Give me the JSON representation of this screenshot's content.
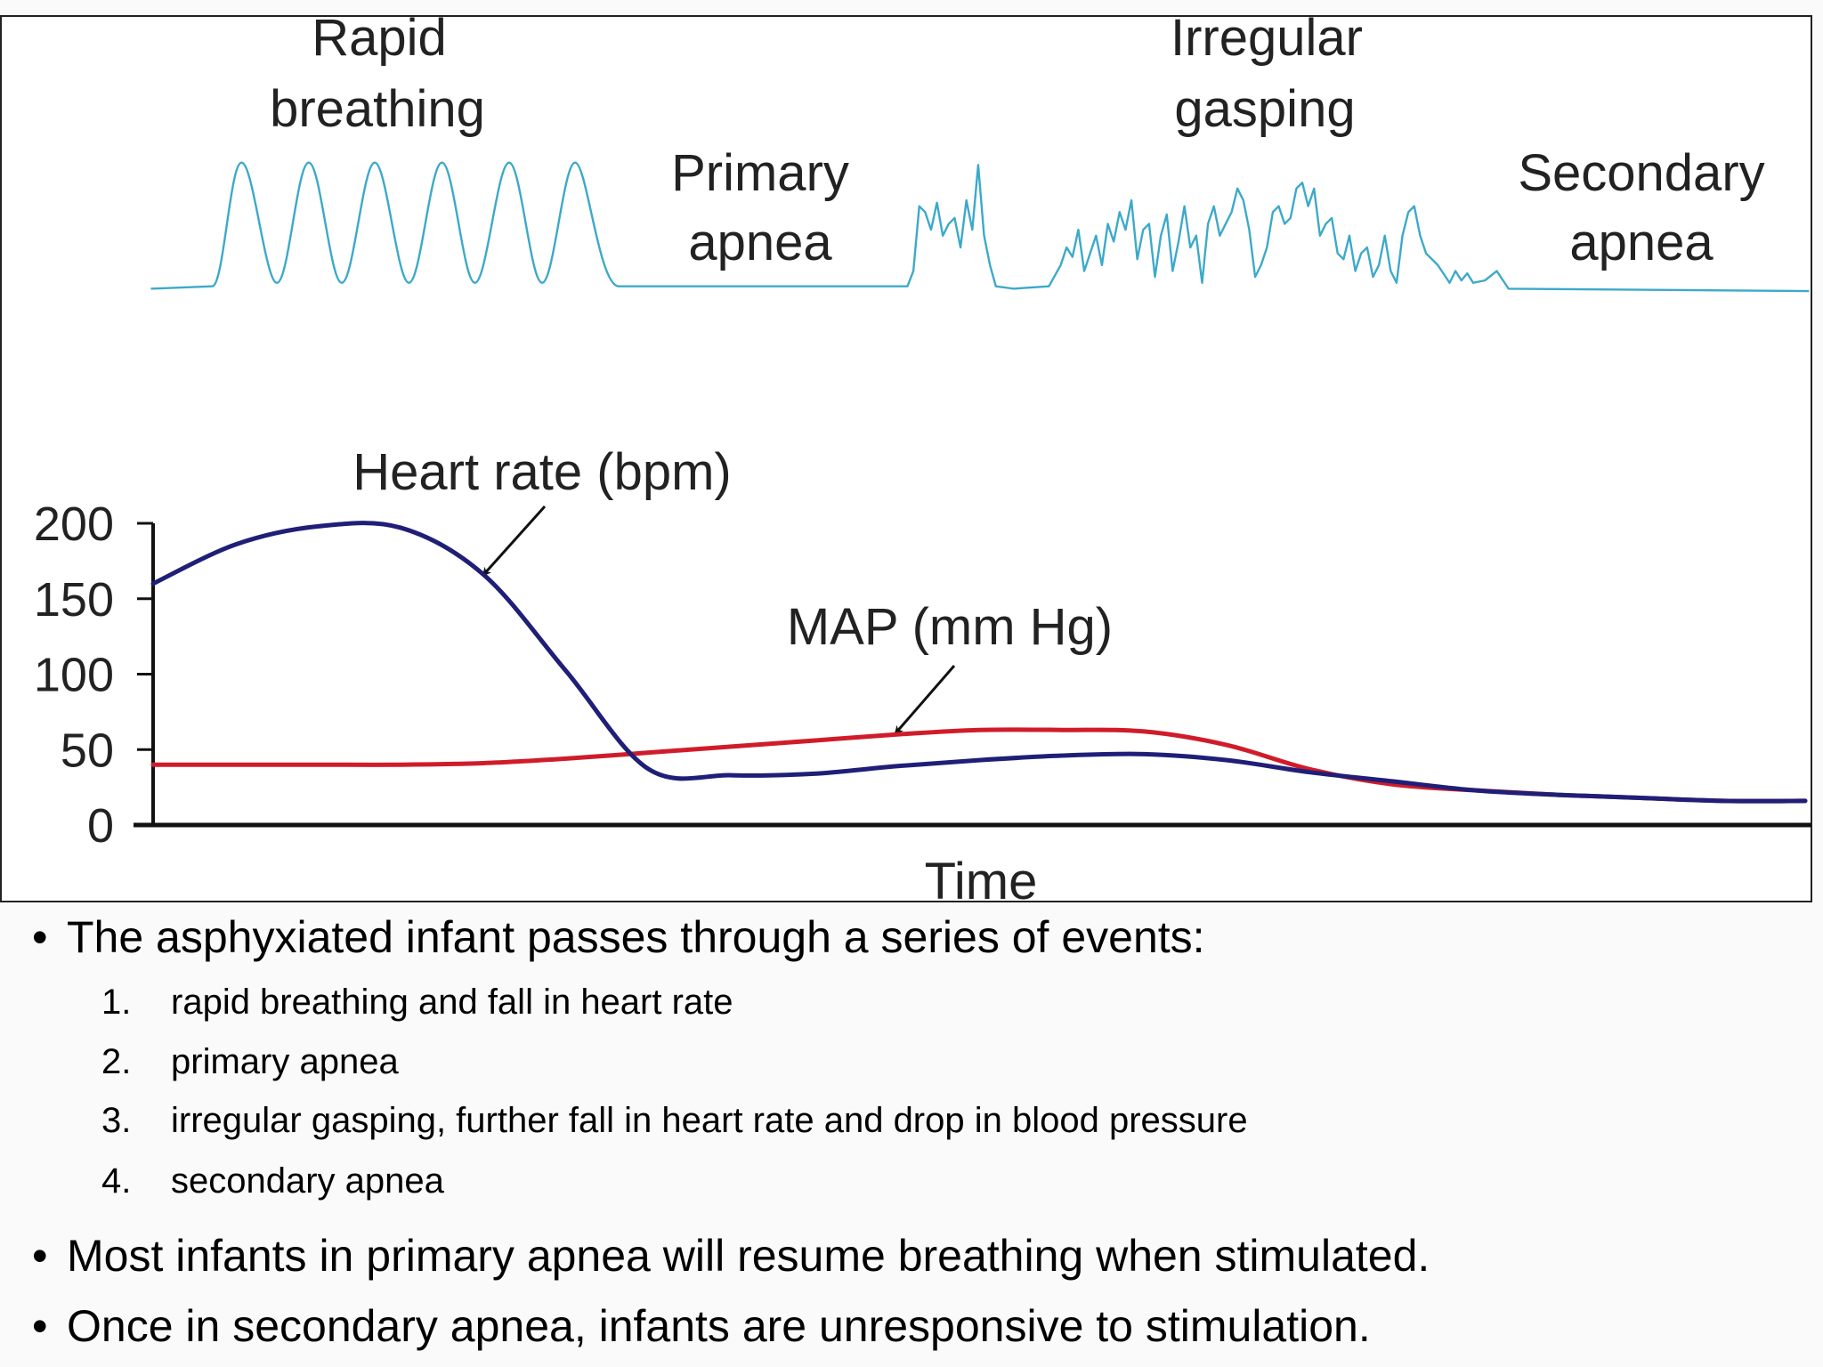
{
  "chart_data": {
    "type": "line",
    "annotations": [
      [
        "Rapid",
        "breathing"
      ],
      [
        "Primary",
        "apnea"
      ],
      [
        "Irregular",
        "gasping"
      ],
      [
        "Secondary",
        "apnea"
      ]
    ],
    "xlabel": "Time",
    "categories": [
      null,
      null,
      null,
      null,
      null,
      null,
      null,
      null,
      null,
      null,
      null,
      null,
      null,
      null,
      null,
      null,
      null,
      null,
      null,
      null,
      null
    ],
    "series": [
      {
        "name": "Heart rate (bpm)",
        "color": "#1f1f78",
        "values": [
          160,
          186,
          198,
          197,
          166,
          102,
          37,
          33,
          34,
          39,
          43,
          46,
          47,
          43,
          35,
          29,
          23,
          20,
          18,
          16,
          16
        ]
      },
      {
        "name": "MAP (mm Hg)",
        "color": "#d01c2a",
        "values": [
          40,
          40,
          40,
          40,
          41,
          44,
          48,
          52,
          56,
          60,
          63,
          63,
          62,
          53,
          37,
          27,
          23,
          20,
          18,
          16,
          16
        ]
      }
    ],
    "ylim": [
      0,
      200
    ],
    "yticks": [
      0,
      50,
      100,
      150,
      200
    ],
    "grid": false
  },
  "bullets": [
    {
      "text": "The asphyxiated infant passes through a series of events:",
      "items": [
        {
          "number": "1.",
          "text": "rapid breathing and fall in heart rate"
        },
        {
          "number": "2.",
          "text": "primary apnea"
        },
        {
          "number": "3.",
          "text": "irregular gasping, further fall in heart rate and drop in blood pressure"
        },
        {
          "number": "4.",
          "text": "secondary apnea"
        }
      ]
    },
    {
      "text": "Most infants in primary apnea will resume breathing when stimulated."
    },
    {
      "text": "Once in secondary apnea, infants are unresponsive to stimulation."
    }
  ]
}
